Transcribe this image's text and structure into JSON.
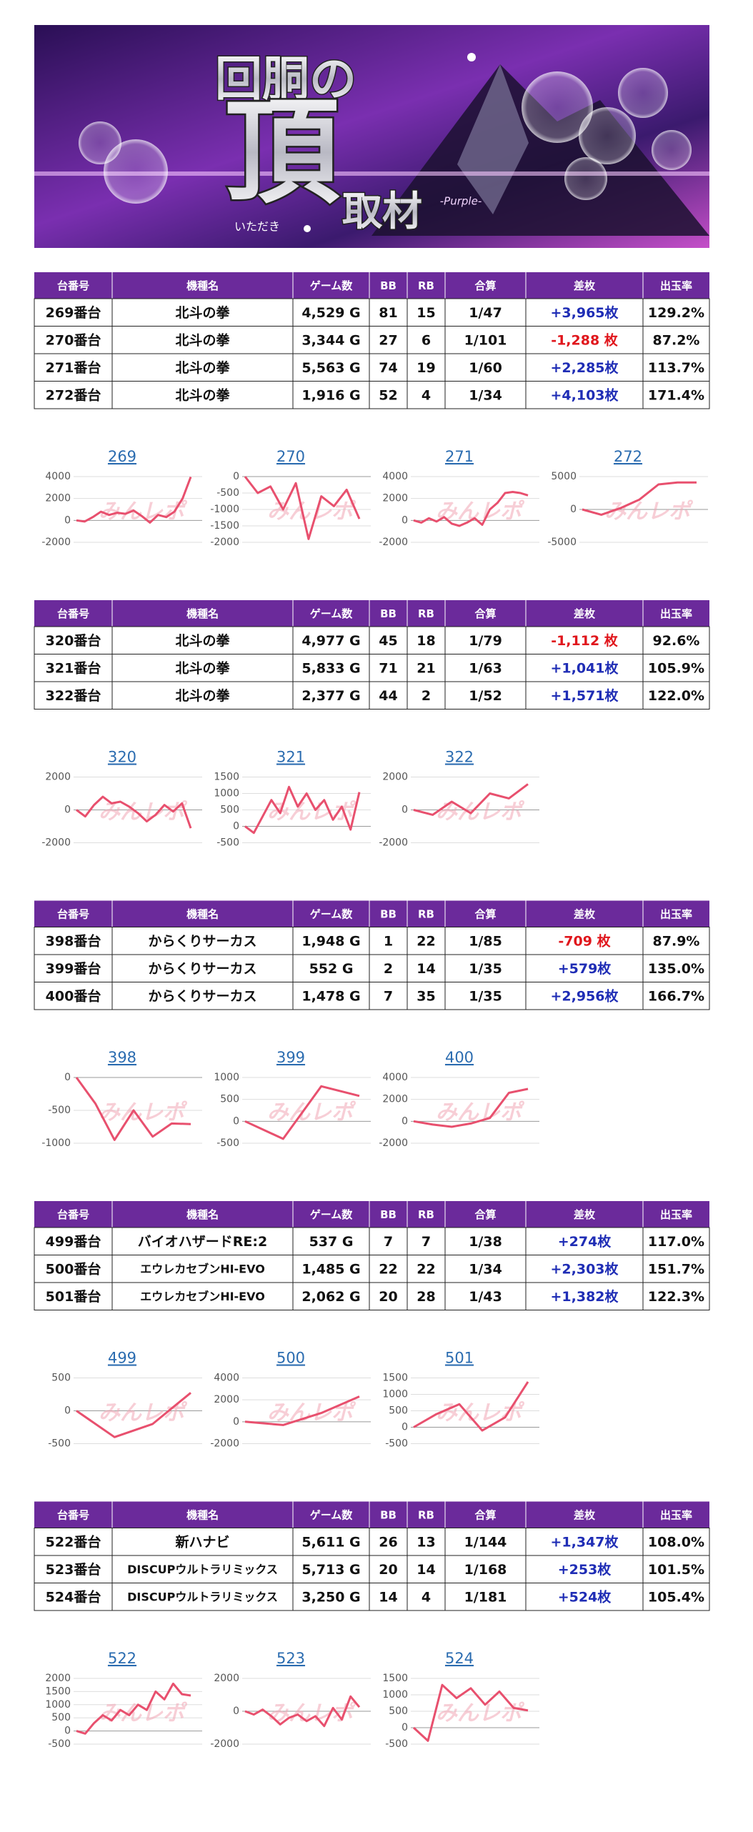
{
  "banner": {
    "title": "回胴の",
    "big": "頂",
    "sub": "取材",
    "ruby": "いただき",
    "tag": "-Purple-"
  },
  "columns": [
    "台番号",
    "機種名",
    "ゲーム数",
    "BB",
    "RB",
    "合算",
    "差枚",
    "出玉率"
  ],
  "diff_color": {
    "positive": "#1f2db5",
    "negative": "#e0161c"
  },
  "line_color": "#e8506e",
  "watermark": "みんレポ",
  "sections": [
    {
      "rows": [
        [
          "269番台",
          "北斗の拳",
          "4,529 G",
          "81",
          "15",
          "1/47",
          "+3,965枚",
          "129.2%"
        ],
        [
          "270番台",
          "北斗の拳",
          "3,344 G",
          "27",
          "6",
          "1/101",
          "-1,288 枚",
          "87.2%"
        ],
        [
          "271番台",
          "北斗の拳",
          "5,563 G",
          "74",
          "19",
          "1/60",
          "+2,285枚",
          "113.7%"
        ],
        [
          "272番台",
          "北斗の拳",
          "1,916 G",
          "52",
          "4",
          "1/34",
          "+4,103枚",
          "171.4%"
        ]
      ],
      "charts": [
        {
          "type": "line",
          "title": "269",
          "ylim": [
            -2000,
            4000
          ],
          "yticks": [
            -2000,
            0,
            2000,
            4000
          ],
          "values": [
            0,
            -100,
            300,
            800,
            500,
            700,
            600,
            900,
            400,
            -200,
            500,
            300,
            800,
            2000,
            3965
          ]
        },
        {
          "type": "line",
          "title": "270",
          "ylim": [
            -2000,
            0
          ],
          "yticks": [
            -2000,
            -1500,
            -1000,
            -500,
            0
          ],
          "values": [
            0,
            -500,
            -300,
            -1000,
            -200,
            -1900,
            -600,
            -900,
            -400,
            -1288
          ]
        },
        {
          "type": "line",
          "title": "271",
          "ylim": [
            -2000,
            4000
          ],
          "yticks": [
            -2000,
            0,
            2000,
            4000
          ],
          "values": [
            0,
            -200,
            200,
            -100,
            300,
            -300,
            -500,
            -200,
            200,
            -400,
            1000,
            1600,
            2500,
            2600,
            2500,
            2285
          ]
        },
        {
          "type": "line",
          "title": "272",
          "ylim": [
            -5000,
            5000
          ],
          "yticks": [
            -5000,
            0,
            5000
          ],
          "values": [
            0,
            -800,
            200,
            1500,
            3800,
            4100,
            4103
          ]
        }
      ]
    },
    {
      "rows": [
        [
          "320番台",
          "北斗の拳",
          "4,977 G",
          "45",
          "18",
          "1/79",
          "-1,112 枚",
          "92.6%"
        ],
        [
          "321番台",
          "北斗の拳",
          "5,833 G",
          "71",
          "21",
          "1/63",
          "+1,041枚",
          "105.9%"
        ],
        [
          "322番台",
          "北斗の拳",
          "2,377 G",
          "44",
          "2",
          "1/52",
          "+1,571枚",
          "122.0%"
        ]
      ],
      "charts": [
        {
          "type": "line",
          "title": "320",
          "ylim": [
            -2000,
            2000
          ],
          "yticks": [
            -2000,
            0,
            2000
          ],
          "values": [
            0,
            -400,
            300,
            800,
            400,
            500,
            200,
            -200,
            -700,
            -300,
            300,
            -100,
            400,
            -1112
          ]
        },
        {
          "type": "line",
          "title": "321",
          "ylim": [
            -500,
            1500
          ],
          "yticks": [
            -500,
            0,
            500,
            1000,
            1500
          ],
          "values": [
            0,
            -200,
            300,
            800,
            400,
            1200,
            600,
            1000,
            500,
            800,
            200,
            600,
            -100,
            1041
          ]
        },
        {
          "type": "line",
          "title": "322",
          "ylim": [
            -2000,
            2000
          ],
          "yticks": [
            -2000,
            0,
            2000
          ],
          "values": [
            0,
            -300,
            500,
            -200,
            1000,
            700,
            1571
          ]
        }
      ]
    },
    {
      "rows": [
        [
          "398番台",
          "からくりサーカス",
          "1,948 G",
          "1",
          "22",
          "1/85",
          "-709 枚",
          "87.9%"
        ],
        [
          "399番台",
          "からくりサーカス",
          "552 G",
          "2",
          "14",
          "1/35",
          "+579枚",
          "135.0%"
        ],
        [
          "400番台",
          "からくりサーカス",
          "1,478 G",
          "7",
          "35",
          "1/35",
          "+2,956枚",
          "166.7%"
        ]
      ],
      "charts": [
        {
          "type": "line",
          "title": "398",
          "ylim": [
            -1000,
            0
          ],
          "yticks": [
            -1000,
            -500,
            0
          ],
          "values": [
            0,
            -400,
            -950,
            -500,
            -900,
            -700,
            -709
          ]
        },
        {
          "type": "line",
          "title": "399",
          "ylim": [
            -500,
            1000
          ],
          "yticks": [
            -500,
            0,
            500,
            1000
          ],
          "values": [
            0,
            -400,
            800,
            579
          ]
        },
        {
          "type": "line",
          "title": "400",
          "ylim": [
            -2000,
            4000
          ],
          "yticks": [
            -2000,
            0,
            2000,
            4000
          ],
          "values": [
            0,
            -300,
            -500,
            -200,
            300,
            2600,
            2956
          ]
        }
      ]
    },
    {
      "rows": [
        [
          "499番台",
          "バイオハザードRE:2",
          "537 G",
          "7",
          "7",
          "1/38",
          "+274枚",
          "117.0%"
        ],
        [
          "500番台",
          "エウレカセブンHI-EVO",
          "1,485 G",
          "22",
          "22",
          "1/34",
          "+2,303枚",
          "151.7%"
        ],
        [
          "501番台",
          "エウレカセブンHI-EVO",
          "2,062 G",
          "20",
          "28",
          "1/43",
          "+1,382枚",
          "122.3%"
        ]
      ],
      "charts": [
        {
          "type": "line",
          "title": "499",
          "ylim": [
            -500,
            500
          ],
          "yticks": [
            -500,
            0,
            500
          ],
          "values": [
            0,
            -400,
            -200,
            274
          ]
        },
        {
          "type": "line",
          "title": "500",
          "ylim": [
            -2000,
            4000
          ],
          "yticks": [
            -2000,
            0,
            2000,
            4000
          ],
          "values": [
            0,
            -300,
            800,
            2303
          ]
        },
        {
          "type": "line",
          "title": "501",
          "ylim": [
            -500,
            1500
          ],
          "yticks": [
            -500,
            0,
            500,
            1000,
            1500
          ],
          "values": [
            0,
            400,
            700,
            -100,
            300,
            1382
          ]
        }
      ]
    },
    {
      "rows": [
        [
          "522番台",
          "新ハナビ",
          "5,611 G",
          "26",
          "13",
          "1/144",
          "+1,347枚",
          "108.0%"
        ],
        [
          "523番台",
          "DISCUPウルトラリミックス",
          "5,713 G",
          "20",
          "14",
          "1/168",
          "+253枚",
          "101.5%"
        ],
        [
          "524番台",
          "DISCUPウルトラリミックス",
          "3,250 G",
          "14",
          "4",
          "1/181",
          "+524枚",
          "105.4%"
        ]
      ],
      "charts": [
        {
          "type": "line",
          "title": "522",
          "ylim": [
            -500,
            2000
          ],
          "yticks": [
            -500,
            0,
            500,
            1000,
            1500,
            2000
          ],
          "values": [
            0,
            -100,
            300,
            600,
            400,
            800,
            600,
            1000,
            800,
            1500,
            1200,
            1800,
            1400,
            1347
          ]
        },
        {
          "type": "line",
          "title": "523",
          "ylim": [
            -2000,
            2000
          ],
          "yticks": [
            -2000,
            0,
            2000
          ],
          "values": [
            0,
            -200,
            100,
            -300,
            -800,
            -400,
            -200,
            -600,
            -300,
            -900,
            200,
            -500,
            900,
            253
          ]
        },
        {
          "type": "line",
          "title": "524",
          "ylim": [
            -500,
            1500
          ],
          "yticks": [
            -500,
            0,
            500,
            1000,
            1500
          ],
          "values": [
            0,
            -400,
            1300,
            900,
            1200,
            700,
            1100,
            600,
            524
          ]
        }
      ]
    }
  ]
}
